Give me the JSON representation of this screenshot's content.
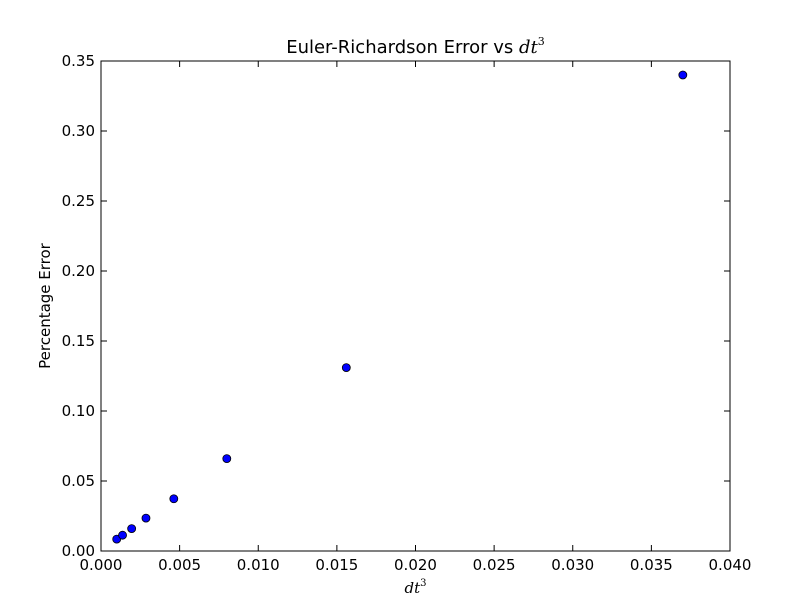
{
  "chart_data": {
    "type": "scatter",
    "title": {
      "text": "Euler-Richardson Error vs ",
      "math": "dt",
      "exp": "3"
    },
    "xlabel": {
      "math": "dt",
      "exp": "3"
    },
    "ylabel": "Percentage Error",
    "xlim": [
      0.0,
      0.04
    ],
    "ylim": [
      0.0,
      0.35
    ],
    "x_ticks": [
      "0.000",
      "0.005",
      "0.010",
      "0.015",
      "0.020",
      "0.025",
      "0.030",
      "0.035",
      "0.040"
    ],
    "y_ticks": [
      "0.00",
      "0.05",
      "0.10",
      "0.15",
      "0.20",
      "0.25",
      "0.30",
      "0.35"
    ],
    "grid": false,
    "marker_color": "#0000ff",
    "marker_edge_color": "#000000",
    "points": [
      {
        "x": 0.001,
        "y": 0.0085
      },
      {
        "x": 0.00137,
        "y": 0.0113
      },
      {
        "x": 0.00195,
        "y": 0.016
      },
      {
        "x": 0.00286,
        "y": 0.0235
      },
      {
        "x": 0.00463,
        "y": 0.0373
      },
      {
        "x": 0.008,
        "y": 0.066
      },
      {
        "x": 0.0156,
        "y": 0.131
      },
      {
        "x": 0.037,
        "y": 0.34
      }
    ]
  }
}
